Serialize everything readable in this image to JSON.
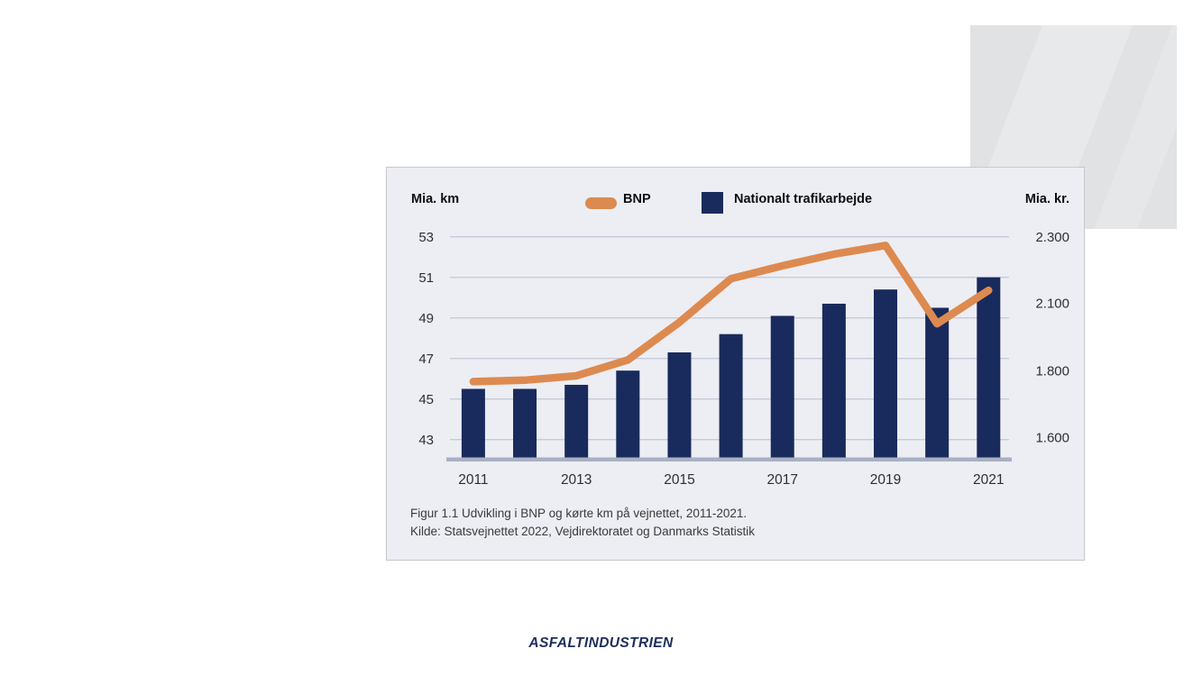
{
  "colors": {
    "page_bg": "#ffffff",
    "panel_bg": "#eceef3",
    "gridline": "#c5cbd9",
    "baseline": "#a9b0c4",
    "orange": "#dd8a50",
    "navy": "#192a5c",
    "deco_bg": "#e0e2e4"
  },
  "caption": {
    "line1": "Figur 1.1 Udvikling i BNP og kørte km på vejnettet, 2011-2021.",
    "line2": "Kilde: Statsvejnettet 2022, Vejdirektoratet og Danmarks Statistik"
  },
  "footer": {
    "logo_text": "ASFALTINDUSTRIEN"
  },
  "chart_data": {
    "type": "bar+line",
    "categories": [
      "2011",
      "2012",
      "2013",
      "2014",
      "2015",
      "2016",
      "2017",
      "2018",
      "2019",
      "2020",
      "2021"
    ],
    "x_tick_labels": [
      "2011",
      "2013",
      "2015",
      "2017",
      "2019",
      "2021"
    ],
    "series": [
      {
        "name": "BNP",
        "type": "line",
        "axis": "right",
        "unit": "Mia. kr.",
        "color": "#dd8a50",
        "values": [
          1800,
          1805,
          1820,
          1875,
          2005,
          2155,
          2200,
          2240,
          2270,
          2000,
          2115
        ]
      },
      {
        "name": "Nationalt trafikarbejde",
        "type": "bar",
        "axis": "left",
        "unit": "Mia. km",
        "color": "#192a5c",
        "values": [
          45.5,
          45.5,
          45.7,
          46.4,
          47.3,
          48.2,
          49.1,
          49.7,
          50.4,
          49.5,
          51.0
        ]
      }
    ],
    "left_axis": {
      "label": "Mia. km",
      "ticks": [
        53,
        51,
        49,
        47,
        45,
        43
      ],
      "baseline_value": 42
    },
    "right_axis": {
      "label": "Mia. kr.",
      "tick_labels": [
        "2.300",
        "2.100",
        "1.800",
        "1.600"
      ],
      "tick_values": [
        2300,
        2100,
        1800,
        1600
      ]
    },
    "gridlines": true,
    "legend_position": "top-center"
  }
}
